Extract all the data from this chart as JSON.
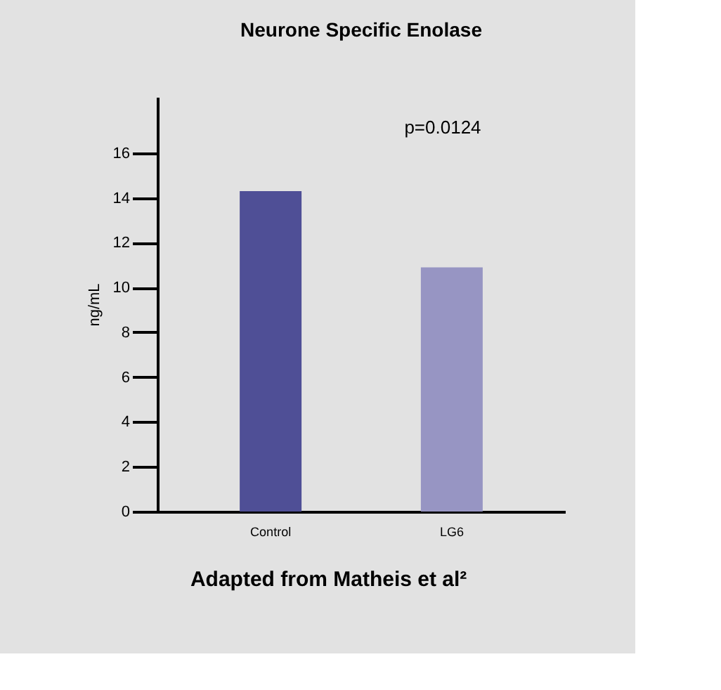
{
  "chart_data": {
    "type": "bar",
    "title": "Neurone Specific Enolase",
    "ylabel": "ng/mL",
    "categories": [
      "Control",
      "LG6"
    ],
    "values": [
      14.3,
      10.9
    ],
    "colors": [
      "#4f4f96",
      "#9795c3"
    ],
    "ylim": [
      0,
      18.5
    ],
    "yticks": [
      0,
      2,
      4,
      6,
      8,
      10,
      12,
      14,
      16
    ],
    "legend": false,
    "annotations": [
      "p=0.0124",
      "Adapted from Matheis et al²"
    ]
  }
}
